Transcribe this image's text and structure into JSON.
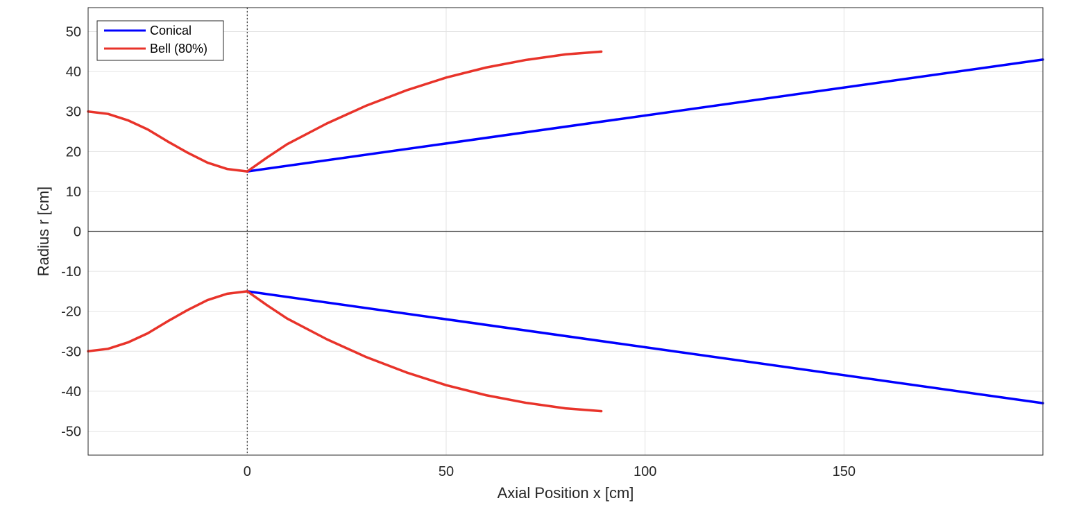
{
  "chart_data": {
    "type": "line",
    "title": "",
    "xlabel": "Axial Position x [cm]",
    "ylabel": "Radius r [cm]",
    "xlim": [
      -40,
      200
    ],
    "ylim": [
      -56,
      56
    ],
    "xticks": [
      0,
      50,
      100,
      150
    ],
    "yticks": [
      50,
      40,
      30,
      20,
      10,
      0,
      -10,
      -20,
      -30,
      -40,
      -50
    ],
    "grid": true,
    "legend_position": "top-left",
    "throat_line_x": 0,
    "series": [
      {
        "name": "Conical",
        "color": "#0000ff",
        "segments": [
          {
            "x": [
              0,
              200
            ],
            "y": [
              15,
              43
            ]
          },
          {
            "x": [
              0,
              200
            ],
            "y": [
              -15,
              -43
            ]
          }
        ]
      },
      {
        "name": "Bell (80%)",
        "color": "#e8332a",
        "segments": [
          {
            "x": [
              -40,
              -35,
              -30,
              -25,
              -20,
              -15,
              -10,
              -5,
              0
            ],
            "y": [
              30,
              29.4,
              27.8,
              25.5,
              22.5,
              19.7,
              17.2,
              15.6,
              15
            ]
          },
          {
            "x": [
              0,
              5,
              10,
              20,
              30,
              40,
              50,
              60,
              70,
              80,
              89
            ],
            "y": [
              15,
              18.5,
              21.8,
              27,
              31.5,
              35.3,
              38.5,
              41,
              42.9,
              44.3,
              45
            ]
          },
          {
            "x": [
              -40,
              -35,
              -30,
              -25,
              -20,
              -15,
              -10,
              -5,
              0
            ],
            "y": [
              -30,
              -29.4,
              -27.8,
              -25.5,
              -22.5,
              -19.7,
              -17.2,
              -15.6,
              -15
            ]
          },
          {
            "x": [
              0,
              5,
              10,
              20,
              30,
              40,
              50,
              60,
              70,
              80,
              89
            ],
            "y": [
              -15,
              -18.5,
              -21.8,
              -27,
              -31.5,
              -35.3,
              -38.5,
              -41,
              -42.9,
              -44.3,
              -45
            ]
          }
        ]
      }
    ]
  }
}
